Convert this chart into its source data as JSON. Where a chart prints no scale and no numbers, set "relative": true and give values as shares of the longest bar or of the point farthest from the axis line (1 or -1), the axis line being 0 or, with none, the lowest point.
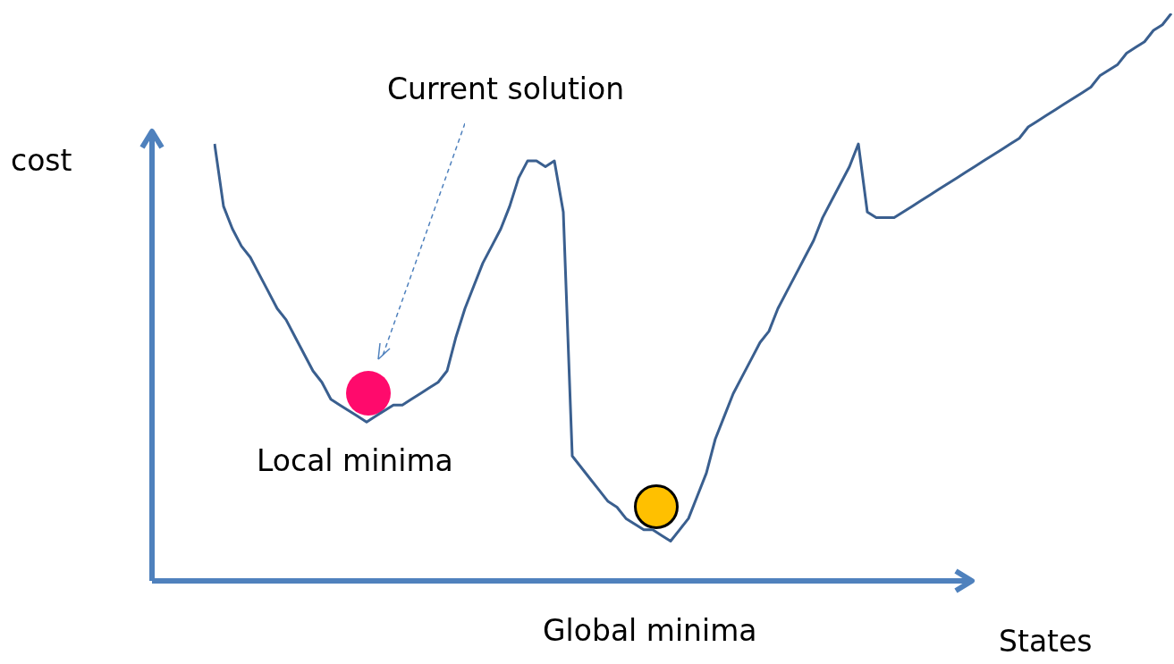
{
  "chart_data": {
    "type": "line",
    "relative": true,
    "xlabel": "States",
    "ylabel": "cost",
    "annotations": [
      "Current solution",
      "Local minima",
      "Global  minima"
    ],
    "categories": [
      null,
      null,
      null,
      null,
      null,
      null,
      null,
      null,
      null,
      null,
      null,
      null,
      null,
      null,
      null,
      null,
      null,
      null,
      null,
      null,
      null,
      null,
      null,
      null,
      null,
      null,
      null,
      null,
      null,
      null,
      null,
      null,
      null,
      null,
      null,
      null,
      null,
      null,
      null,
      null,
      null,
      null,
      null,
      null,
      null,
      null,
      null,
      null,
      null,
      null,
      null,
      null,
      null,
      null,
      null,
      null,
      null,
      null,
      null,
      null,
      null,
      null,
      null,
      null,
      null,
      null,
      null,
      null,
      null,
      null,
      null,
      null,
      null,
      null,
      null,
      null,
      null,
      null,
      null,
      null,
      null,
      null,
      null,
      null,
      null,
      null,
      null,
      null,
      null,
      null,
      null,
      null,
      null,
      null,
      null,
      null,
      null,
      null,
      null,
      null,
      null,
      null,
      null,
      null,
      null,
      null,
      null,
      null
    ],
    "series": [
      {
        "color": "#3a5f8f",
        "values": [
          0.77,
          0.66,
          0.62,
          0.59,
          0.57,
          0.54,
          0.51,
          0.48,
          0.46,
          0.43,
          0.4,
          0.37,
          0.35,
          0.32,
          0.31,
          0.3,
          0.29,
          0.28,
          0.29,
          0.3,
          0.31,
          0.31,
          0.32,
          0.33,
          0.34,
          0.35,
          0.37,
          0.43,
          0.48,
          0.52,
          0.56,
          0.59,
          0.62,
          0.66,
          0.71,
          0.74,
          0.74,
          0.73,
          0.74,
          0.65,
          0.22,
          0.2,
          0.18,
          0.16,
          0.14,
          0.13,
          0.11,
          0.1,
          0.09,
          0.09,
          0.08,
          0.07,
          0.09,
          0.11,
          0.15,
          0.19,
          0.25,
          0.29,
          0.33,
          0.36,
          0.39,
          0.42,
          0.44,
          0.48,
          0.51,
          0.54,
          0.57,
          0.6,
          0.64,
          0.67,
          0.7,
          0.73,
          0.77,
          0.65,
          0.64,
          0.64,
          0.64,
          0.65,
          0.66,
          0.67,
          0.68,
          0.69,
          0.7,
          0.71,
          0.72,
          0.73,
          0.74,
          0.75,
          0.76,
          0.77,
          0.78,
          0.8,
          0.81,
          0.82,
          0.83,
          0.84,
          0.85,
          0.86,
          0.87,
          0.89,
          0.9,
          0.91,
          0.93,
          0.94,
          0.95,
          0.97,
          0.98,
          1
        ]
      }
    ]
  }
}
